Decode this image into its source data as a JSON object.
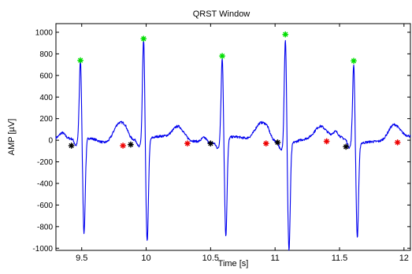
{
  "chart_data": {
    "type": "line",
    "title": "QRST Window",
    "xlabel": "Time [s]",
    "ylabel": "AMP [µV]",
    "xlim": [
      9.3,
      12.05
    ],
    "ylim": [
      -1020,
      1080
    ],
    "x_ticks": [
      9.5,
      10,
      10.5,
      11,
      11.5,
      12
    ],
    "x_tick_labels": [
      "9.5",
      "10",
      "10.5",
      "11",
      "11.5",
      "12"
    ],
    "y_ticks": [
      1000,
      800,
      600,
      400,
      200,
      0,
      -200,
      -400,
      -600,
      -800,
      -1000
    ],
    "y_tick_labels": [
      "1000",
      "800",
      "600",
      "400",
      "200",
      "0",
      "-200",
      "-400",
      "-600",
      "-800",
      "-1000"
    ],
    "grid": false,
    "colors": {
      "signal": "#0000ee",
      "r_peak_marker": "#00dd00",
      "red_marker": "#ee0000",
      "black_marker": "#000000"
    },
    "beats": [
      {
        "r_time": 9.49,
        "r_amp": 740,
        "s_amp": -880
      },
      {
        "r_time": 9.98,
        "r_amp": 940,
        "s_amp": -950
      },
      {
        "r_time": 10.59,
        "r_amp": 780,
        "s_amp": -900
      },
      {
        "r_time": 11.08,
        "r_amp": 980,
        "s_amp": -990
      },
      {
        "r_time": 11.61,
        "r_amp": 735,
        "s_amp": -880
      }
    ],
    "t_waves": [
      {
        "time": 9.79,
        "amp": 180
      },
      {
        "time": 10.25,
        "amp": 140
      },
      {
        "time": 10.89,
        "amp": 150
      },
      {
        "time": 11.35,
        "amp": 120
      },
      {
        "time": 11.92,
        "amp": 150
      }
    ],
    "r_peak_markers": [
      {
        "x": 9.49,
        "y": 740
      },
      {
        "x": 9.98,
        "y": 940
      },
      {
        "x": 10.59,
        "y": 780
      },
      {
        "x": 11.08,
        "y": 980
      },
      {
        "x": 11.61,
        "y": 735
      }
    ],
    "red_markers": [
      {
        "x": 9.82,
        "y": -50
      },
      {
        "x": 10.32,
        "y": -30
      },
      {
        "x": 10.93,
        "y": -30
      },
      {
        "x": 11.4,
        "y": -10
      },
      {
        "x": 11.95,
        "y": -20
      }
    ],
    "black_markers": [
      {
        "x": 9.42,
        "y": -50
      },
      {
        "x": 9.88,
        "y": -40
      },
      {
        "x": 10.5,
        "y": -30
      },
      {
        "x": 11.02,
        "y": -20
      },
      {
        "x": 11.55,
        "y": -60
      }
    ]
  }
}
